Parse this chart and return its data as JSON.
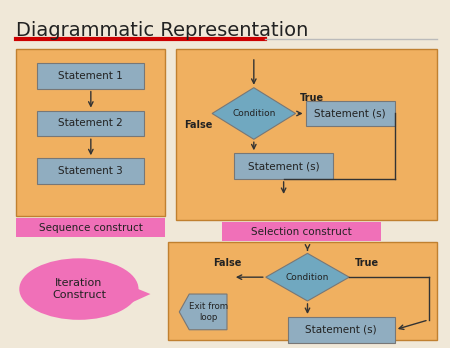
{
  "title": "Diagrammatic Representation",
  "bg_color": "#f0e8d8",
  "title_color": "#222222",
  "red_line_color": "#cc0000",
  "gray_line_color": "#bbbbbb",
  "orange_box_color": "#f0b060",
  "pink_label_color": "#f070b8",
  "blue_box_color": "#90adc0",
  "diamond_color": "#70a8c0",
  "arrow_color": "#333333",
  "seq_label": "Sequence construct",
  "sel_label": "Selection construct",
  "iter_label": "Iteration\nConstruct",
  "true_label": "True",
  "false_label": "False",
  "cond_text": "Condition",
  "stmt_text": "Statement (s)",
  "exit_text": "Exit from\nloop",
  "s1": "Statement 1",
  "s2": "Statement 2",
  "s3": "Statement 3"
}
